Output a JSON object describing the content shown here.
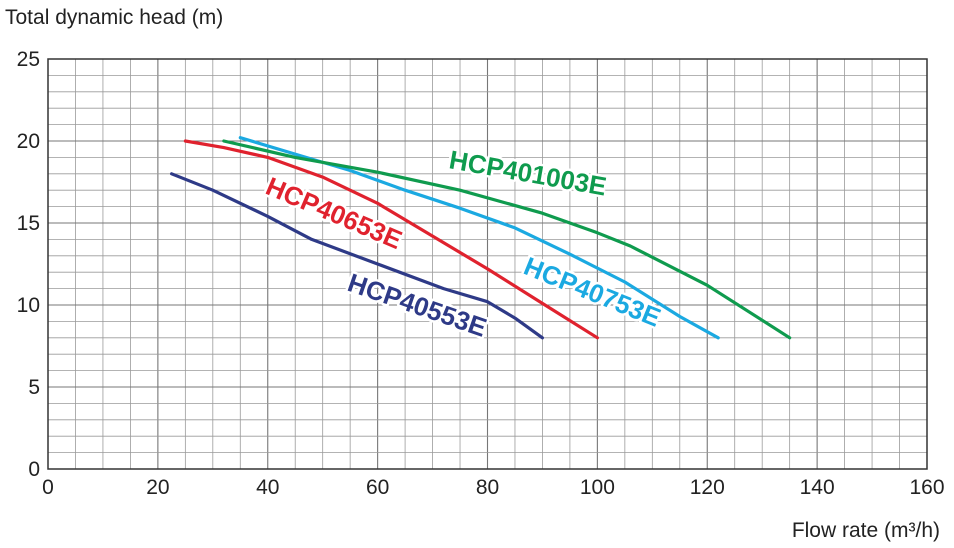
{
  "chart_data": {
    "type": "line",
    "title": "",
    "ylabel": "Total dynamic head (m)",
    "xlabel": "Flow rate (m³/h)",
    "xlim": [
      0,
      160
    ],
    "ylim": [
      0,
      25
    ],
    "xticks": [
      0,
      20,
      40,
      60,
      80,
      100,
      120,
      140,
      160
    ],
    "yticks": [
      0,
      5,
      10,
      15,
      20,
      25
    ],
    "grid": true,
    "legend": "none",
    "series": [
      {
        "name": "HCP40553E",
        "color": "#2e3a87",
        "points": [
          [
            22.5,
            18
          ],
          [
            30,
            17
          ],
          [
            40,
            15.4
          ],
          [
            48,
            14
          ],
          [
            60,
            12.5
          ],
          [
            72,
            11
          ],
          [
            80,
            10.2
          ],
          [
            85,
            9.2
          ],
          [
            90,
            8
          ]
        ]
      },
      {
        "name": "HCP40653E",
        "color": "#e0222e",
        "points": [
          [
            25,
            20
          ],
          [
            32,
            19.6
          ],
          [
            40,
            19
          ],
          [
            50,
            17.8
          ],
          [
            60,
            16.2
          ],
          [
            70,
            14.2
          ],
          [
            80,
            12.2
          ],
          [
            90,
            10.1
          ],
          [
            100,
            8
          ]
        ]
      },
      {
        "name": "HCP40753E",
        "color": "#1ba9e1",
        "points": [
          [
            35,
            20.2
          ],
          [
            45,
            19.2
          ],
          [
            55,
            18.2
          ],
          [
            65,
            17
          ],
          [
            75,
            15.9
          ],
          [
            85,
            14.7
          ],
          [
            95,
            13.1
          ],
          [
            105,
            11.4
          ],
          [
            115,
            9.3
          ],
          [
            122,
            8
          ]
        ]
      },
      {
        "name": "HCP401003E",
        "color": "#0f9b4e",
        "points": [
          [
            32,
            20
          ],
          [
            45,
            19
          ],
          [
            60,
            18.1
          ],
          [
            75,
            17
          ],
          [
            90,
            15.6
          ],
          [
            100,
            14.4
          ],
          [
            106,
            13.6
          ],
          [
            120,
            11.2
          ],
          [
            135,
            8
          ]
        ]
      }
    ]
  }
}
